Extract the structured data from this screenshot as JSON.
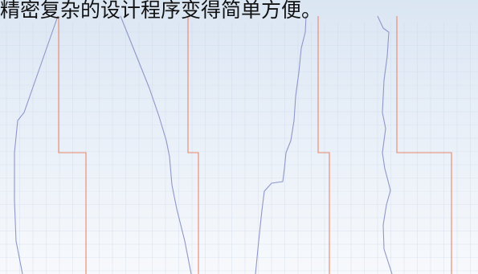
{
  "caption": "精密复杂的设计程序变得简单方便。",
  "colors": {
    "background_top": "#dbe6f3",
    "background_bottom": "#f7f9fc",
    "grid_line": "#c9d6e6",
    "measured_trace": "#8f97c9",
    "reference_trace": "#e8866b"
  },
  "panels": [
    {
      "name": "panel-1"
    },
    {
      "name": "panel-2"
    },
    {
      "name": "panel-3"
    },
    {
      "name": "panel-4"
    }
  ]
}
